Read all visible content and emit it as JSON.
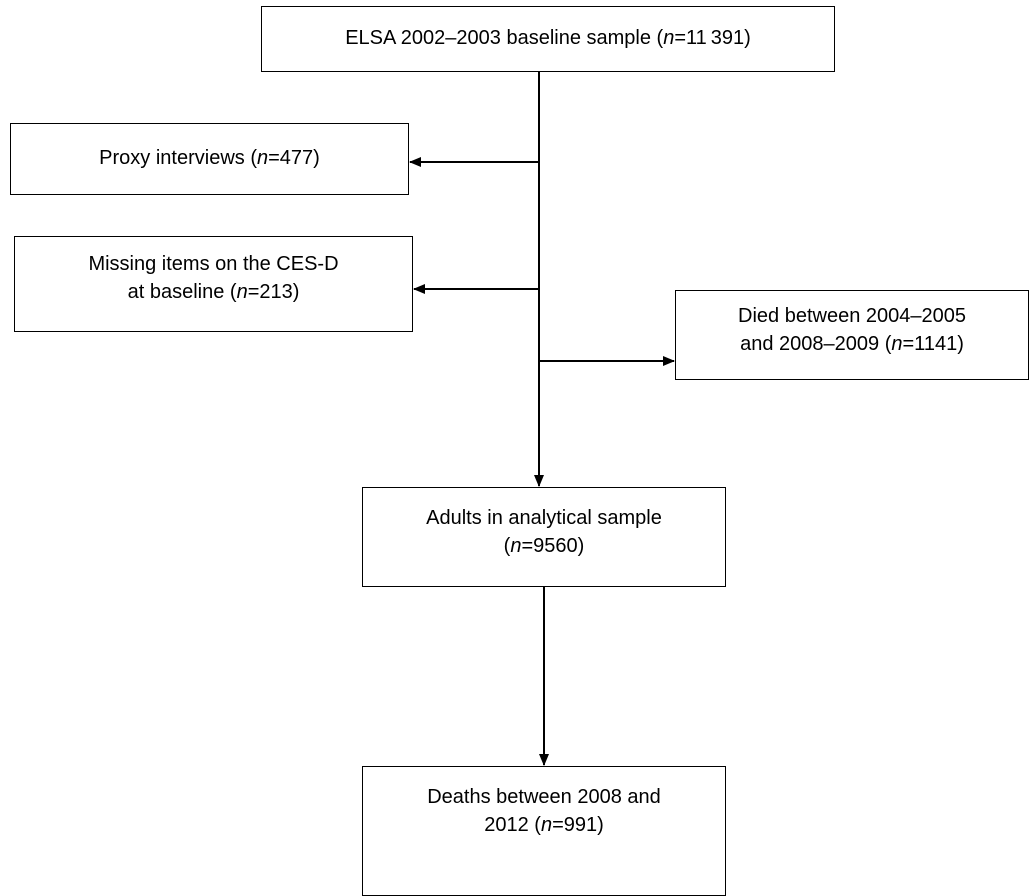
{
  "boxes": {
    "baseline": {
      "pre": "ELSA 2002–2003 baseline sample (",
      "n": "n",
      "post": "=11 391)"
    },
    "proxy": {
      "pre": "Proxy interviews (",
      "n": "n",
      "post": "=477)"
    },
    "missing": {
      "line1": "Missing items on the CES-D",
      "pre": "at baseline (",
      "n": "n",
      "post": "=213)"
    },
    "died": {
      "line1": "Died between 2004–2005",
      "pre": "and 2008–2009 (",
      "n": "n",
      "post": "=1141)"
    },
    "analytical": {
      "line1": "Adults in analytical sample",
      "pre": "(",
      "n": "n",
      "post": "=9560)"
    },
    "deaths": {
      "line1": "Deaths between 2008 and",
      "pre": "2012 (",
      "n": "n",
      "post": "=991)"
    }
  }
}
